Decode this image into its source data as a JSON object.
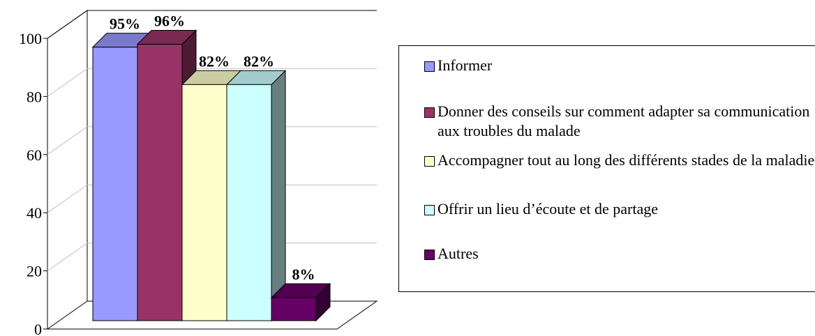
{
  "chart_data": {
    "type": "bar",
    "categories": [
      null
    ],
    "series": [
      {
        "name": "Informer",
        "color": "#9999ff",
        "values": [
          95
        ],
        "value_labels": [
          "95%"
        ]
      },
      {
        "name": "Donner des conseils sur comment adapter sa communication aux troubles du malade",
        "color": "#993366",
        "values": [
          96
        ],
        "value_labels": [
          "96%"
        ]
      },
      {
        "name": "Accompagner tout au long des différents stades de la maladie",
        "color": "#ffffcc",
        "values": [
          82
        ],
        "value_labels": [
          "82%"
        ]
      },
      {
        "name": "Offrir un lieu d’écoute et de partage",
        "color": "#ccffff",
        "values": [
          82
        ],
        "value_labels": [
          "82%"
        ]
      },
      {
        "name": "Autres",
        "color": "#660066",
        "values": [
          8
        ],
        "value_labels": [
          "8%"
        ]
      }
    ],
    "ylim": [
      0,
      100
    ],
    "yticks": [
      0,
      20,
      40,
      60,
      80,
      100
    ],
    "grid": true
  }
}
